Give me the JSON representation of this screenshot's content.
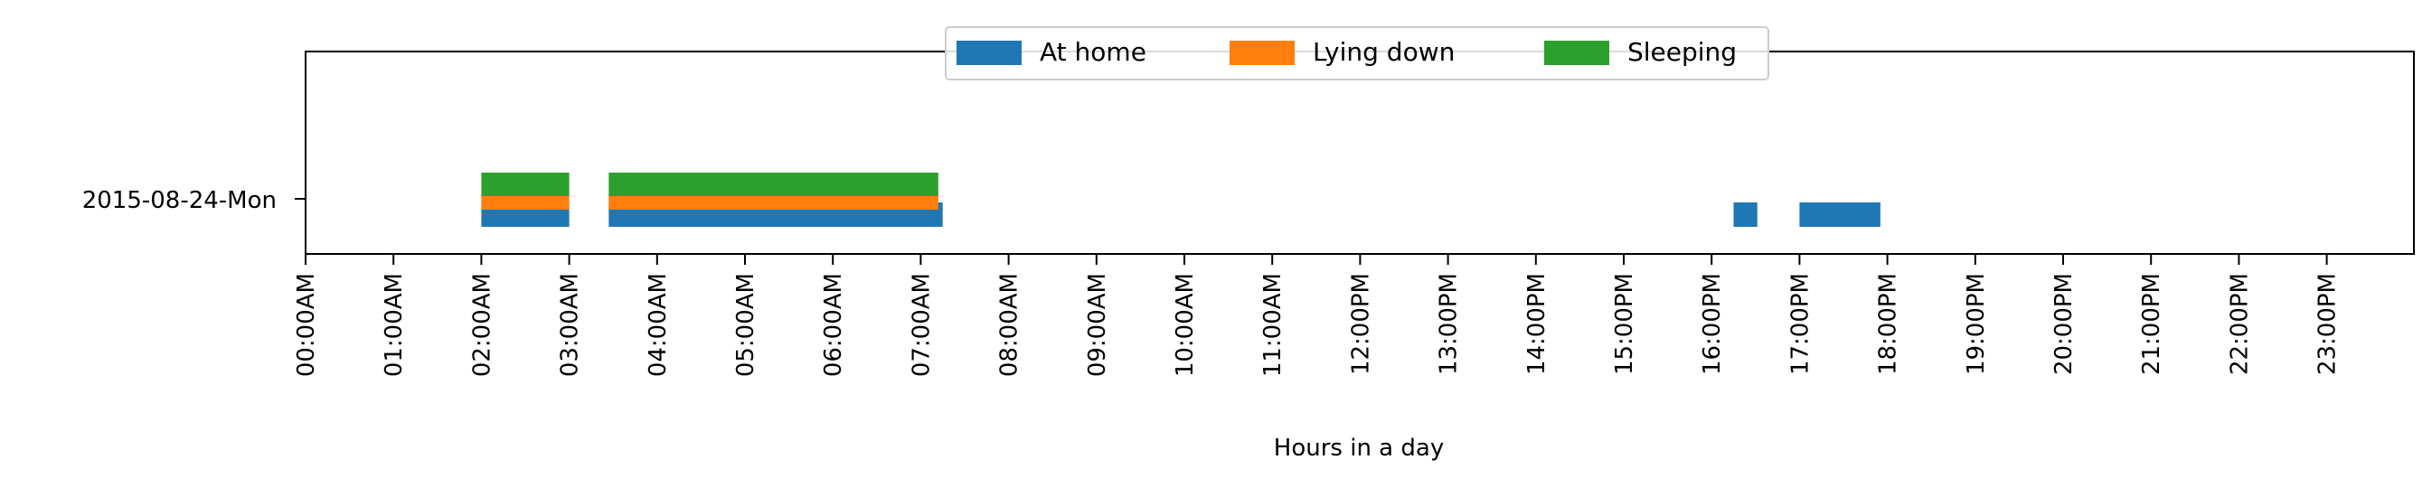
{
  "chart_data": {
    "type": "timeline",
    "title": "",
    "xlabel": "Hours in a day",
    "ylabel": "",
    "xlim_hours": [
      0,
      24
    ],
    "grid": false,
    "legend_placement": "top-center",
    "row_label": "2015-08-24-Mon",
    "x_tick_labels": [
      "00:00AM",
      "01:00AM",
      "02:00AM",
      "03:00AM",
      "04:00AM",
      "05:00AM",
      "06:00AM",
      "07:00AM",
      "08:00AM",
      "09:00AM",
      "10:00AM",
      "11:00AM",
      "12:00PM",
      "13:00PM",
      "14:00PM",
      "15:00PM",
      "16:00PM",
      "17:00PM",
      "18:00PM",
      "19:00PM",
      "20:00PM",
      "21:00PM",
      "22:00PM",
      "23:00PM"
    ],
    "series": [
      {
        "name": "At home",
        "color": "#1f77b4",
        "intervals": [
          [
            2.0,
            3.0
          ],
          [
            3.45,
            7.25
          ],
          [
            16.25,
            16.52
          ],
          [
            17.0,
            17.92
          ]
        ]
      },
      {
        "name": "Lying down",
        "color": "#ff7f0e",
        "intervals": [
          [
            2.0,
            3.0
          ],
          [
            3.45,
            7.2
          ]
        ]
      },
      {
        "name": "Sleeping",
        "color": "#2ca02c",
        "intervals": [
          [
            2.0,
            3.0
          ],
          [
            3.45,
            7.2
          ]
        ]
      }
    ]
  }
}
